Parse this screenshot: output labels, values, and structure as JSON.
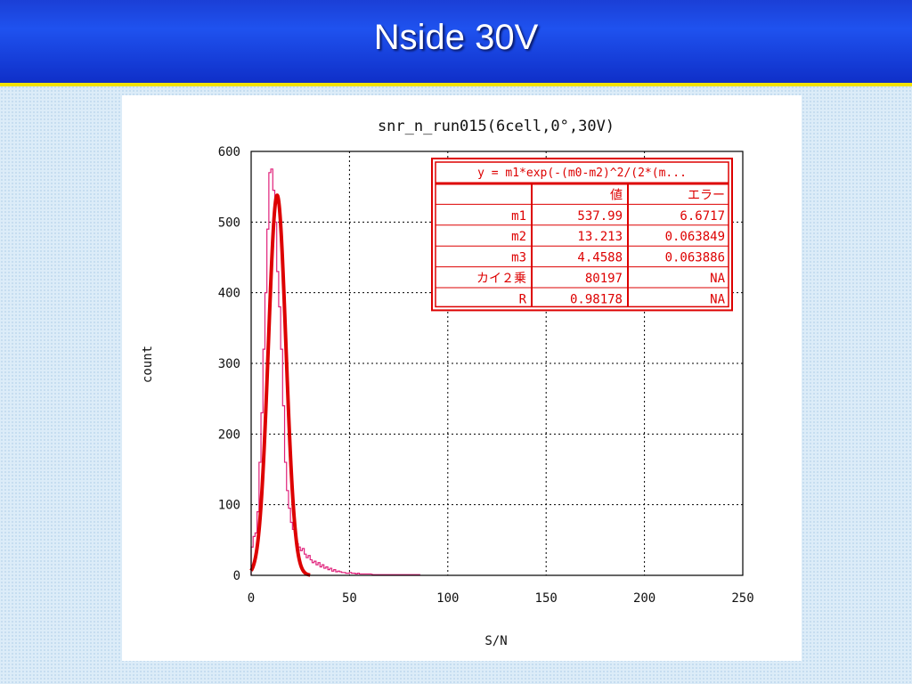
{
  "slide": {
    "title": "Nside 30V"
  },
  "chart_data": {
    "type": "line",
    "title": "snr_n_run015(6cell,0°,30V)",
    "xlabel": "S/N",
    "ylabel": "count",
    "xlim": [
      0,
      250
    ],
    "ylim": [
      0,
      600
    ],
    "x_ticks": [
      0,
      50,
      100,
      150,
      200,
      250
    ],
    "y_ticks": [
      0,
      100,
      200,
      300,
      400,
      500,
      600
    ],
    "grid": true,
    "series": [
      {
        "kind": "histogram",
        "color": "#e0207a",
        "bin_width": 1,
        "x": [
          0,
          1,
          2,
          3,
          4,
          5,
          6,
          7,
          8,
          9,
          10,
          11,
          12,
          13,
          14,
          15,
          16,
          17,
          18,
          19,
          20,
          21,
          22,
          23,
          24,
          25,
          26,
          27,
          28,
          29,
          30,
          31,
          32,
          33,
          34,
          35,
          36,
          37,
          38,
          39,
          40,
          41,
          42,
          43,
          44,
          45,
          46,
          47,
          48,
          49,
          50,
          51,
          52,
          53,
          54,
          55,
          56,
          57,
          58,
          59,
          60,
          62,
          64,
          66,
          78,
          85
        ],
        "values": [
          40,
          55,
          60,
          90,
          160,
          230,
          320,
          400,
          490,
          570,
          575,
          545,
          500,
          430,
          380,
          320,
          240,
          160,
          120,
          95,
          75,
          65,
          60,
          45,
          40,
          35,
          38,
          30,
          25,
          28,
          22,
          18,
          20,
          15,
          18,
          12,
          15,
          10,
          12,
          8,
          10,
          6,
          8,
          5,
          6,
          5,
          4,
          4,
          3,
          3,
          4,
          3,
          3,
          2,
          3,
          2,
          2,
          2,
          2,
          2,
          2,
          1,
          1,
          1,
          1,
          1
        ]
      },
      {
        "kind": "fit",
        "color": "#dd0000",
        "model": "gaussian",
        "m1": 537.99,
        "m2": 13.213,
        "m3": 4.4588,
        "x_range": [
          0,
          30
        ]
      }
    ],
    "fit_table": {
      "formula": "y = m1*exp(-(m0-m2)^2/(2*(m...",
      "headers": [
        "",
        "値",
        "エラー"
      ],
      "rows": [
        [
          "m1",
          "537.99",
          "6.6717"
        ],
        [
          "m2",
          "13.213",
          "0.063849"
        ],
        [
          "m3",
          "4.4588",
          "0.063886"
        ],
        [
          "カイ２乗",
          "80197",
          "NA"
        ],
        [
          "R",
          "0.98178",
          "NA"
        ]
      ],
      "color": "#dd0000"
    }
  }
}
